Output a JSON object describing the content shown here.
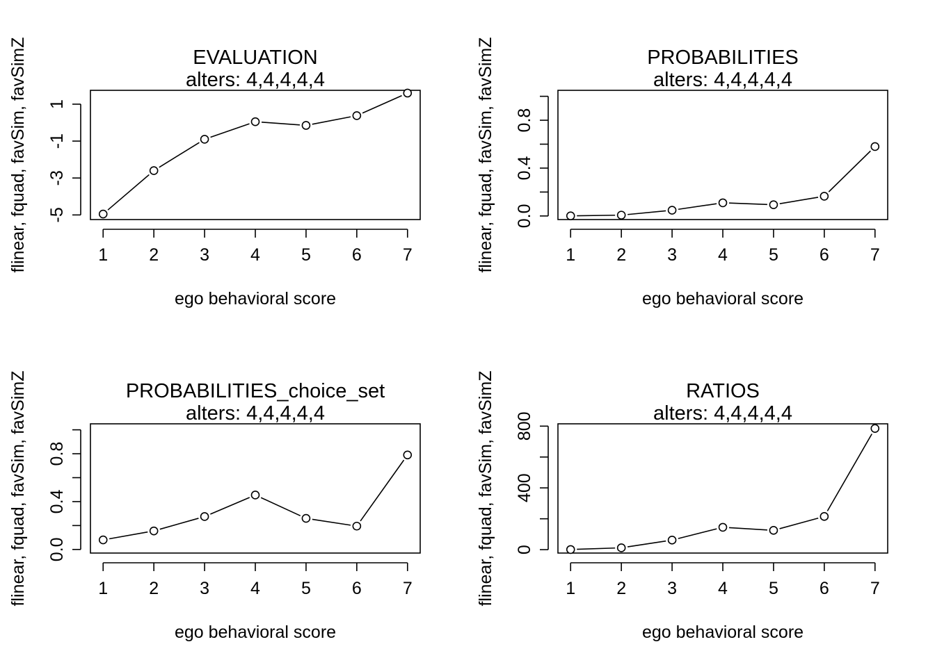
{
  "chart_data": [
    {
      "type": "line",
      "title": "EVALUATION",
      "subtitle": "alters: 4,4,4,4,4",
      "xlabel": "ego behavioral score",
      "ylabel": "flinear, fquad, favSim, favSimZ",
      "x": [
        1,
        2,
        3,
        4,
        5,
        6,
        7
      ],
      "values": [
        -4.95,
        -2.6,
        -0.9,
        0.05,
        -0.15,
        0.38,
        1.6
      ],
      "xticks": [
        "1",
        "2",
        "3",
        "4",
        "5",
        "6",
        "7"
      ],
      "yticks": [
        -5,
        -3,
        -1,
        1
      ],
      "ytick_labels": [
        "-5",
        "-3",
        "-1",
        "1"
      ],
      "ylim": [
        -5.25,
        1.75
      ],
      "xlim": [
        0.75,
        7.25
      ],
      "grid": false
    },
    {
      "type": "line",
      "title": "PROBABILITIES",
      "subtitle": "alters: 4,4,4,4,4",
      "xlabel": "ego behavioral score",
      "ylabel": "flinear, fquad, favSim, favSimZ",
      "x": [
        1,
        2,
        3,
        4,
        5,
        6,
        7
      ],
      "values": [
        0.001,
        0.007,
        0.048,
        0.11,
        0.094,
        0.165,
        0.58
      ],
      "xticks": [
        "1",
        "2",
        "3",
        "4",
        "5",
        "6",
        "7"
      ],
      "yticks": [
        0.0,
        0.2,
        0.4,
        0.6,
        0.8,
        1.0
      ],
      "ytick_labels": [
        "0.0",
        "",
        "0.4",
        "",
        "0.8",
        ""
      ],
      "ylim": [
        -0.03,
        1.05
      ],
      "xlim": [
        0.75,
        7.25
      ],
      "grid": false
    },
    {
      "type": "line",
      "title": "PROBABILITIES_choice_set",
      "subtitle": "alters: 4,4,4,4,4",
      "xlabel": "ego behavioral score",
      "ylabel": "flinear, fquad, favSim, favSimZ",
      "x": [
        1,
        2,
        3,
        4,
        5,
        6,
        7
      ],
      "values": [
        0.08,
        0.155,
        0.275,
        0.455,
        0.26,
        0.195,
        0.79
      ],
      "xticks": [
        "1",
        "2",
        "3",
        "4",
        "5",
        "6",
        "7"
      ],
      "yticks": [
        0.0,
        0.2,
        0.4,
        0.6,
        0.8,
        1.0
      ],
      "ytick_labels": [
        "0.0",
        "",
        "0.4",
        "",
        "0.8",
        ""
      ],
      "ylim": [
        -0.03,
        1.05
      ],
      "xlim": [
        0.75,
        7.25
      ],
      "grid": false
    },
    {
      "type": "line",
      "title": "RATIOS",
      "subtitle": "alters: 4,4,4,4,4",
      "xlabel": "ego behavioral score",
      "ylabel": "flinear, fquad, favSim, favSimZ",
      "x": [
        1,
        2,
        3,
        4,
        5,
        6,
        7
      ],
      "values": [
        1,
        12,
        62,
        145,
        125,
        215,
        785
      ],
      "xticks": [
        "1",
        "2",
        "3",
        "4",
        "5",
        "6",
        "7"
      ],
      "yticks": [
        0,
        200,
        400,
        600,
        800
      ],
      "ytick_labels": [
        "0",
        "",
        "400",
        "",
        "800"
      ],
      "ylim": [
        -22,
        815
      ],
      "xlim": [
        0.75,
        7.25
      ],
      "grid": false
    }
  ]
}
